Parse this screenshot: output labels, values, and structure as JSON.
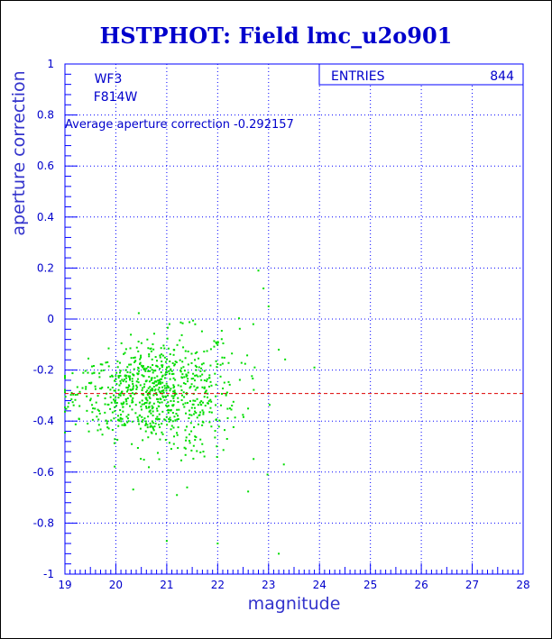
{
  "colors": {
    "frame": "#0000ff",
    "text": "#0000cc",
    "points": "#00dd00",
    "mean_line": "#dd0000",
    "background": "#ffffff"
  },
  "chart_data": {
    "type": "scatter",
    "title": "HSTPHOT: Field lmc_u2o901",
    "xlabel": "magnitude",
    "ylabel": "aperture correction",
    "xlim": [
      19,
      28
    ],
    "ylim": [
      -1,
      1
    ],
    "x_ticks": [
      "19",
      "20",
      "21",
      "22",
      "23",
      "24",
      "25",
      "26",
      "27",
      "28"
    ],
    "y_ticks": [
      "-1",
      "-0.8",
      "-0.6",
      "-0.4",
      "-0.2",
      "0",
      "0.2",
      "0.4",
      "0.6",
      "0.8",
      "1"
    ],
    "grid": true,
    "stats_box": {
      "label": "ENTRIES",
      "value": "844"
    },
    "labels": {
      "camera": "WF3",
      "filter": "F814W",
      "average": "Average aperture correction -0.292157"
    },
    "mean_line": -0.292157,
    "n_points": 844,
    "distribution": {
      "x_center": 20.8,
      "x_spread": 0.8,
      "x_min": 19.0,
      "x_max": 23.4,
      "y_scatter_bright": 0.06,
      "y_scatter_per_mag": 0.025
    },
    "outliers": [
      {
        "x": 22.8,
        "y": 0.19
      },
      {
        "x": 22.9,
        "y": 0.12
      },
      {
        "x": 23.0,
        "y": 0.05
      },
      {
        "x": 22.7,
        "y": -0.02
      },
      {
        "x": 21.0,
        "y": -0.87
      },
      {
        "x": 22.0,
        "y": -0.88
      },
      {
        "x": 23.2,
        "y": -0.92
      },
      {
        "x": 23.3,
        "y": -0.57
      },
      {
        "x": 21.4,
        "y": -0.66
      },
      {
        "x": 21.2,
        "y": -0.69
      },
      {
        "x": 23.9,
        "y": -0.19
      },
      {
        "x": 23.2,
        "y": -0.12
      }
    ]
  }
}
